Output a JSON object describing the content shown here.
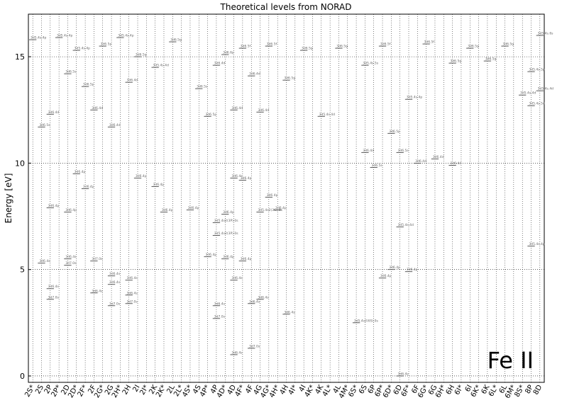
{
  "chart_data": {
    "type": "levels",
    "title": "Theoretical levels from NORAD",
    "ylabel": "Energy [eV]",
    "annotation": "Fe II",
    "categories": [
      "2S*",
      "2S",
      "2P",
      "2P*",
      "2D",
      "2D*",
      "2F*",
      "2F",
      "2G*",
      "2G",
      "2H*",
      "2H",
      "2I",
      "2I*",
      "2K",
      "2K*",
      "2L",
      "2L*",
      "4S*",
      "4S",
      "4P*",
      "4P",
      "4D*",
      "4D",
      "4F*",
      "4F",
      "4G",
      "4G*",
      "4H*",
      "4H",
      "4I*",
      "4I",
      "4K*",
      "4K",
      "4L*",
      "4L",
      "4M*",
      "6S*",
      "6S",
      "6P",
      "6P*",
      "6D*",
      "6D",
      "6F*",
      "6F",
      "6G*",
      "6G",
      "6H*",
      "6H",
      "6I*",
      "6I",
      "6K*",
      "6K",
      "6L*",
      "6L",
      "6M*",
      "8S*",
      "8P",
      "8D"
    ],
    "ylim": [
      -0.3,
      17
    ],
    "yticks": [
      0,
      5,
      10,
      15
    ],
    "grid": true,
    "color": "#333333",
    "levels": [
      {
        "term": "6D",
        "energy": 0.0,
        "label": "3d6.4s"
      },
      {
        "term": "4F",
        "energy": 1.3,
        "label": "3d7.0s"
      },
      {
        "term": "4D",
        "energy": 1.0,
        "label": "3d6.4s"
      },
      {
        "term": "6S*",
        "energy": 2.5,
        "label": "3d5.4s2(6S).0s"
      },
      {
        "term": "4H",
        "energy": 2.9,
        "label": "3d6.4s"
      },
      {
        "term": "4P",
        "energy": 3.3,
        "label": "3d6.4s"
      },
      {
        "term": "4P",
        "energy": 2.7,
        "label": "3d7.0s"
      },
      {
        "term": "4F",
        "energy": 3.4,
        "label": "3d6.4s"
      },
      {
        "term": "4G",
        "energy": 3.6,
        "label": "3d6.4s"
      },
      {
        "term": "4D",
        "energy": 4.5,
        "label": "3d6.4s"
      },
      {
        "term": "2P",
        "energy": 4.1,
        "label": "3d6.4s"
      },
      {
        "term": "2P",
        "energy": 3.6,
        "label": "3d7.0s"
      },
      {
        "term": "2D",
        "energy": 5.2,
        "label": "3d7.0s"
      },
      {
        "term": "2D",
        "energy": 5.5,
        "label": "3d6.4s"
      },
      {
        "term": "2F",
        "energy": 3.9,
        "label": "3d6.4s"
      },
      {
        "term": "2F",
        "energy": 5.4,
        "label": "3d7.0s"
      },
      {
        "term": "2G",
        "energy": 3.3,
        "label": "3d7.0s"
      },
      {
        "term": "2G",
        "energy": 4.3,
        "label": "3d6.4s"
      },
      {
        "term": "2G",
        "energy": 4.7,
        "label": "3d6.4s"
      },
      {
        "term": "2H",
        "energy": 3.4,
        "label": "3d7.0s"
      },
      {
        "term": "2H",
        "energy": 3.8,
        "label": "3d6.4s"
      },
      {
        "term": "2H",
        "energy": 4.5,
        "label": "3d6.4s"
      },
      {
        "term": "2S",
        "energy": 5.3,
        "label": "3d6.4s"
      },
      {
        "term": "6D*",
        "energy": 5.0,
        "label": "3d6.4p"
      },
      {
        "term": "6F*",
        "energy": 4.9,
        "label": "3d6.4p"
      },
      {
        "term": "6P*",
        "energy": 4.6,
        "label": "3d6.4p"
      },
      {
        "term": "4F*",
        "energy": 5.4,
        "label": "3d6.4p"
      },
      {
        "term": "4D*",
        "energy": 5.5,
        "label": "3d6.4p"
      },
      {
        "term": "4P*",
        "energy": 5.6,
        "label": "3d6.4p"
      },
      {
        "term": "4P",
        "energy": 6.6,
        "label": "3d5.4s2(3P).0s"
      },
      {
        "term": "6D",
        "energy": 7.0,
        "label": "3d5.4s.4d"
      },
      {
        "term": "2P",
        "energy": 7.9,
        "label": "3d6.4p"
      },
      {
        "term": "2D",
        "energy": 7.7,
        "label": "3d6.4p"
      },
      {
        "term": "2F*",
        "energy": 8.8,
        "label": "3d6.4p"
      },
      {
        "term": "2D*",
        "energy": 9.5,
        "label": "3d6.4p"
      },
      {
        "term": "4D*",
        "energy": 7.6,
        "label": "3d6.4p"
      },
      {
        "term": "4P",
        "energy": 7.2,
        "label": "3d5.4s2(3P).0s"
      },
      {
        "term": "4G",
        "energy": 7.7,
        "label": "3d5.4s2(3G).0s"
      },
      {
        "term": "4H*",
        "energy": 7.8,
        "label": "3d6.4p"
      },
      {
        "term": "4S*",
        "energy": 7.8,
        "label": "3d6.4p"
      },
      {
        "term": "2K",
        "energy": 8.9,
        "label": "3d6.4p"
      },
      {
        "term": "2I",
        "energy": 9.3,
        "label": "3d6.4p"
      },
      {
        "term": "2K*",
        "energy": 7.7,
        "label": "3d6.4p"
      },
      {
        "term": "4F*",
        "energy": 9.2,
        "label": "3d6.4p"
      },
      {
        "term": "4D",
        "energy": 9.3,
        "label": "3d6.4s"
      },
      {
        "term": "4G*",
        "energy": 8.4,
        "label": "3d6.4p"
      },
      {
        "term": "6P",
        "energy": 9.8,
        "label": "3d6.5s"
      },
      {
        "term": "6D",
        "energy": 10.5,
        "label": "3d6.5s"
      },
      {
        "term": "6F",
        "energy": 10.0,
        "label": "3d6.4d"
      },
      {
        "term": "6S",
        "energy": 10.5,
        "label": "3d6.4d"
      },
      {
        "term": "6G",
        "energy": 10.2,
        "label": "3d6.4d"
      },
      {
        "term": "6H",
        "energy": 9.9,
        "label": "3d6.4d"
      },
      {
        "term": "8P",
        "energy": 6.1,
        "label": "3d5.4s.4p"
      },
      {
        "term": "8S*",
        "energy": 13.2,
        "label": "3d5.4s.4d"
      },
      {
        "term": "8P",
        "energy": 12.7,
        "label": "3d5.4s.5d"
      },
      {
        "term": "8D",
        "energy": 13.4,
        "label": "3d5.4s.4d"
      },
      {
        "term": "2S*",
        "energy": 15.8,
        "label": "3d5.4s.4p"
      },
      {
        "term": "2S",
        "energy": 11.7,
        "label": "3d6.5s"
      },
      {
        "term": "2P",
        "energy": 12.3,
        "label": "3d6.4d"
      },
      {
        "term": "2P*",
        "energy": 15.9,
        "label": "3d5.4s.4p"
      },
      {
        "term": "2D",
        "energy": 14.2,
        "label": "3d6.5s"
      },
      {
        "term": "2D*",
        "energy": 15.3,
        "label": "3d5.4s.4p"
      },
      {
        "term": "2F*",
        "energy": 13.6,
        "label": "3d6.5p"
      },
      {
        "term": "2F",
        "energy": 12.5,
        "label": "3d6.4d"
      },
      {
        "term": "2G*",
        "energy": 15.5,
        "label": "3d6.5p"
      },
      {
        "term": "2G",
        "energy": 11.7,
        "label": "3d6.4d"
      },
      {
        "term": "2H*",
        "energy": 15.9,
        "label": "3d5.4s.4p"
      },
      {
        "term": "2H",
        "energy": 13.8,
        "label": "3d6.4d"
      },
      {
        "term": "2I",
        "energy": 15.0,
        "label": "3d6.5g"
      },
      {
        "term": "2K",
        "energy": 14.5,
        "label": "3d5.4s.4d"
      },
      {
        "term": "2L",
        "energy": 15.7,
        "label": "3d6.5g"
      },
      {
        "term": "4S",
        "energy": 13.5,
        "label": "3d6.5s"
      },
      {
        "term": "4P*",
        "energy": 12.2,
        "label": "3d6.5p"
      },
      {
        "term": "4P",
        "energy": 14.6,
        "label": "3d6.4d"
      },
      {
        "term": "4D*",
        "energy": 15.1,
        "label": "3d6.6p"
      },
      {
        "term": "4D",
        "energy": 12.5,
        "label": "3d6.4d"
      },
      {
        "term": "4F*",
        "energy": 15.4,
        "label": "3d6.5f"
      },
      {
        "term": "4F",
        "energy": 14.1,
        "label": "3d6.4d"
      },
      {
        "term": "4G",
        "energy": 12.4,
        "label": "3d6.4d"
      },
      {
        "term": "4G*",
        "energy": 15.5,
        "label": "3d6.5f"
      },
      {
        "term": "4H",
        "energy": 13.9,
        "label": "3d6.5g"
      },
      {
        "term": "4I",
        "energy": 15.3,
        "label": "3d6.5g"
      },
      {
        "term": "4K",
        "energy": 12.2,
        "label": "3d5.4s.4d"
      },
      {
        "term": "4L",
        "energy": 15.4,
        "label": "3d6.5g"
      },
      {
        "term": "6S",
        "energy": 14.6,
        "label": "3d5.4s.5s"
      },
      {
        "term": "6P*",
        "energy": 15.5,
        "label": "3d6.5f"
      },
      {
        "term": "6D*",
        "energy": 11.4,
        "label": "3d6.5p"
      },
      {
        "term": "6F*",
        "energy": 13.0,
        "label": "3d5.4s.4p"
      },
      {
        "term": "6G*",
        "energy": 15.6,
        "label": "3d6.5f"
      },
      {
        "term": "6H",
        "energy": 14.7,
        "label": "3d6.5g"
      },
      {
        "term": "6I",
        "energy": 15.4,
        "label": "3d6.5g"
      },
      {
        "term": "6K",
        "energy": 14.8,
        "label": "3d6.5g"
      },
      {
        "term": "6L",
        "energy": 15.5,
        "label": "3d6.5g"
      },
      {
        "term": "8P",
        "energy": 14.3,
        "label": "3d5.4s.5p"
      },
      {
        "term": "8D",
        "energy": 16.0,
        "label": "3d5.4s.6s"
      }
    ]
  }
}
